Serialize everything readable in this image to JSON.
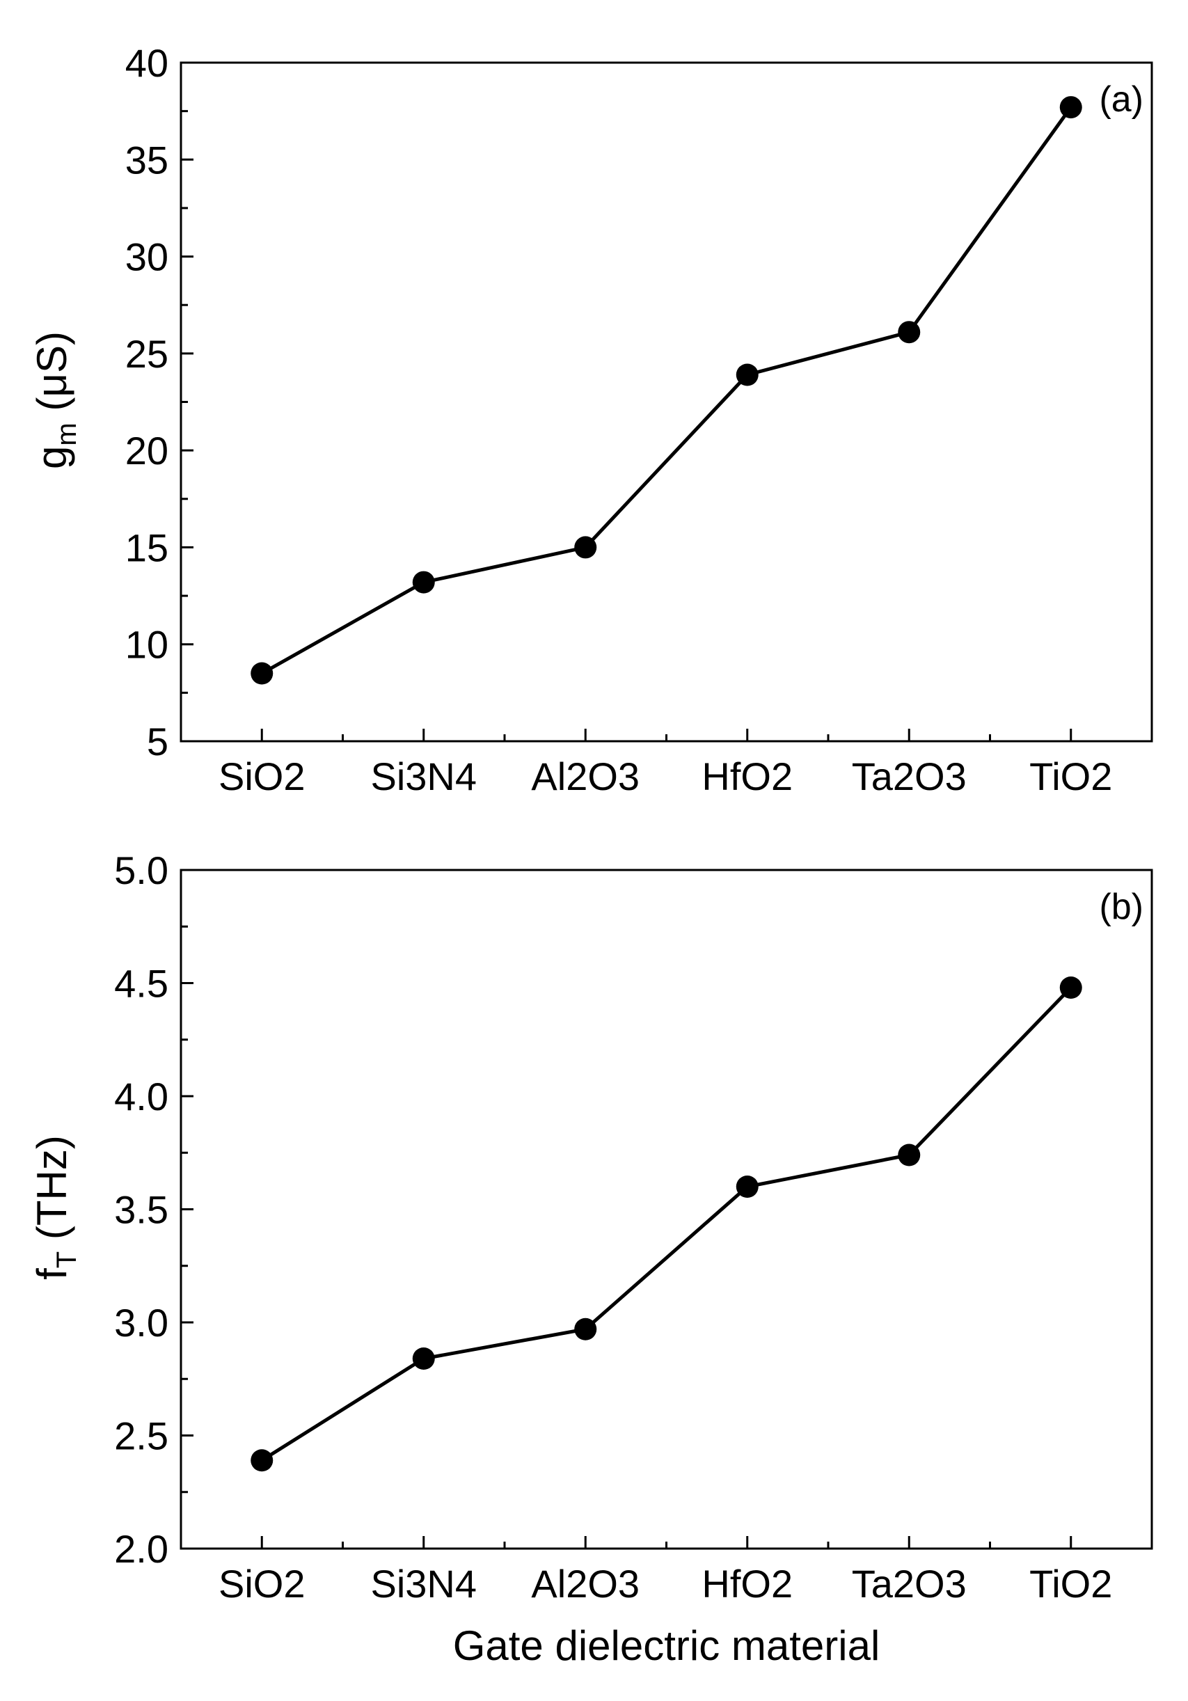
{
  "chart_data": [
    {
      "type": "line",
      "panel_label": "(a)",
      "categories": [
        "SiO2",
        "Si3N4",
        "Al2O3",
        "HfO2",
        "Ta2O3",
        "TiO2"
      ],
      "values": [
        8.5,
        13.2,
        15.0,
        23.9,
        26.1,
        37.7
      ],
      "ylabel_main": "g",
      "ylabel_sub": "m",
      "ylabel_unit": "(μS)",
      "xlabel": "",
      "ylim": [
        5,
        40
      ],
      "ytick_values": [
        5,
        10,
        15,
        20,
        25,
        30,
        35,
        40
      ],
      "ytick_labels": [
        "5",
        "10",
        "15",
        "20",
        "25",
        "30",
        "35",
        "40"
      ],
      "yminor_step": 2.5,
      "marker": "filled-circle",
      "color": "#000000",
      "grid": false
    },
    {
      "type": "line",
      "panel_label": "(b)",
      "categories": [
        "SiO2",
        "Si3N4",
        "Al2O3",
        "HfO2",
        "Ta2O3",
        "TiO2"
      ],
      "values": [
        2.39,
        2.84,
        2.97,
        3.6,
        3.74,
        4.48
      ],
      "ylabel_main": "f",
      "ylabel_sub": "T",
      "ylabel_unit": "(THz)",
      "xlabel": "Gate dielectric material",
      "ylim": [
        2.0,
        5.0
      ],
      "ytick_values": [
        2.0,
        2.5,
        3.0,
        3.5,
        4.0,
        4.5,
        5.0
      ],
      "ytick_labels": [
        "2.0",
        "2.5",
        "3.0",
        "3.5",
        "4.0",
        "4.5",
        "5.0"
      ],
      "yminor_step": 0.25,
      "marker": "filled-circle",
      "color": "#000000",
      "grid": false
    }
  ]
}
